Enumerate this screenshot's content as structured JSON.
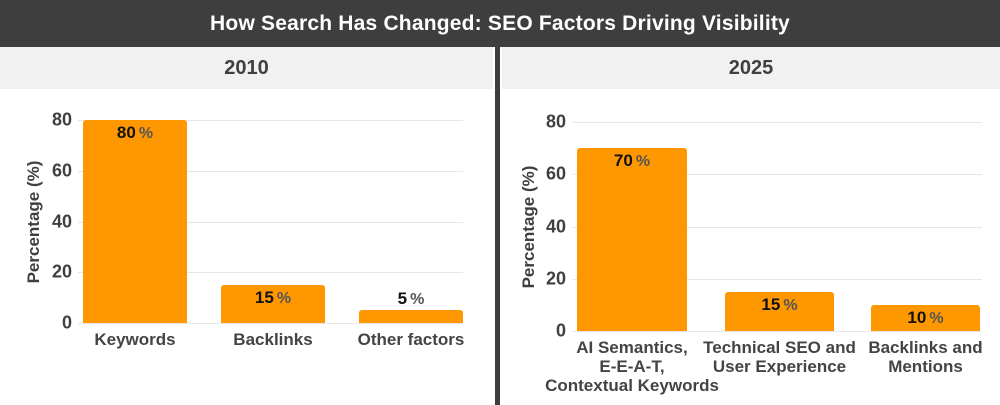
{
  "header": {
    "title": "How Search Has Changed: SEO Factors Driving Visibility"
  },
  "colors": {
    "bar": "#FF9800",
    "header_bg": "#3E3E3E",
    "panel_bg": "#F0F1F0",
    "divider": "#3E3E3E",
    "gridline": "#E7E7E7",
    "text": "#3F3F3F",
    "value_number": "#111111",
    "value_unit": "#555555"
  },
  "chart_data": [
    {
      "type": "bar",
      "title": "2010",
      "categories": [
        "Keywords",
        "Backlinks",
        "Other factors"
      ],
      "values": [
        80,
        15,
        5
      ],
      "unit": "%",
      "xlabel": "",
      "ylabel": "Percentage (%)",
      "yticks": [
        0,
        20,
        40,
        60,
        80
      ],
      "ylim": [
        0,
        80
      ],
      "grid": true,
      "legend": "none",
      "bar_color": "#FF9800"
    },
    {
      "type": "bar",
      "title": "2025",
      "categories": [
        "AI Semantics,\nE-E-A-T,\nContextual Keywords",
        "Technical SEO and\nUser Experience",
        "Backlinks and\nMentions"
      ],
      "values": [
        70,
        15,
        10
      ],
      "unit": "%",
      "xlabel": "",
      "ylabel": "Percentage (%)",
      "yticks": [
        0,
        20,
        40,
        60,
        80
      ],
      "ylim": [
        0,
        80
      ],
      "grid": true,
      "legend": "none",
      "bar_color": "#FF9800"
    }
  ]
}
